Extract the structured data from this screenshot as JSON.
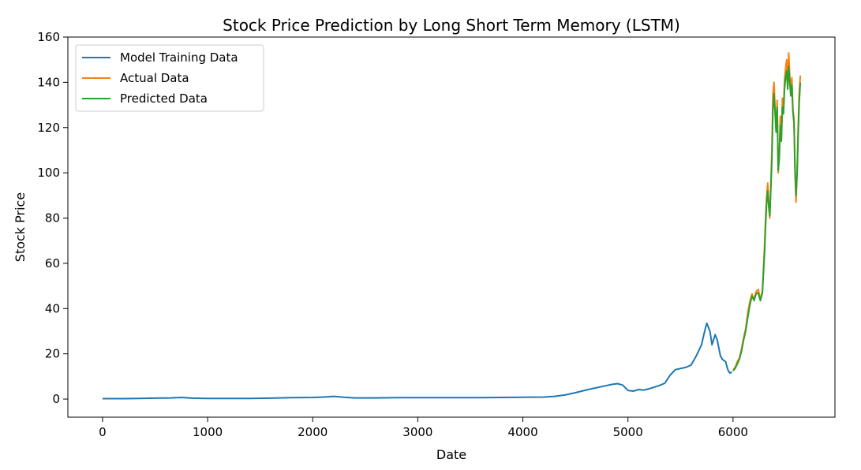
{
  "chart_data": {
    "type": "line",
    "title": "Stock Price Prediction by Long Short Term Memory (LSTM)",
    "xlabel": "Date",
    "ylabel": "Stock Price",
    "xlim": [
      -330,
      6970
    ],
    "ylim": [
      -8,
      160
    ],
    "xticks": [
      0,
      1000,
      2000,
      3000,
      4000,
      5000,
      6000
    ],
    "yticks": [
      0,
      20,
      40,
      60,
      80,
      100,
      120,
      140,
      160
    ],
    "grid": false,
    "legend_position": "top-left",
    "series": [
      {
        "name": "Model Training Data",
        "color": "#1f77b4",
        "points": [
          [
            0,
            0.2
          ],
          [
            200,
            0.2
          ],
          [
            350,
            0.3
          ],
          [
            500,
            0.4
          ],
          [
            650,
            0.5
          ],
          [
            750,
            0.7
          ],
          [
            850,
            0.4
          ],
          [
            1000,
            0.3
          ],
          [
            1200,
            0.3
          ],
          [
            1400,
            0.3
          ],
          [
            1600,
            0.4
          ],
          [
            1800,
            0.6
          ],
          [
            2000,
            0.7
          ],
          [
            2100,
            0.9
          ],
          [
            2200,
            1.2
          ],
          [
            2300,
            0.8
          ],
          [
            2400,
            0.5
          ],
          [
            2600,
            0.5
          ],
          [
            2800,
            0.6
          ],
          [
            3000,
            0.6
          ],
          [
            3200,
            0.6
          ],
          [
            3400,
            0.6
          ],
          [
            3600,
            0.6
          ],
          [
            3800,
            0.7
          ],
          [
            4000,
            0.8
          ],
          [
            4200,
            0.9
          ],
          [
            4300,
            1.2
          ],
          [
            4400,
            1.8
          ],
          [
            4500,
            2.8
          ],
          [
            4600,
            4.0
          ],
          [
            4700,
            5.0
          ],
          [
            4800,
            6.0
          ],
          [
            4850,
            6.5
          ],
          [
            4900,
            6.8
          ],
          [
            4950,
            6.2
          ],
          [
            5000,
            3.8
          ],
          [
            5050,
            3.5
          ],
          [
            5100,
            4.2
          ],
          [
            5150,
            4.0
          ],
          [
            5200,
            4.5
          ],
          [
            5300,
            6.0
          ],
          [
            5350,
            7.0
          ],
          [
            5400,
            10.5
          ],
          [
            5450,
            13.0
          ],
          [
            5500,
            13.5
          ],
          [
            5550,
            14.0
          ],
          [
            5600,
            15.0
          ],
          [
            5650,
            19.0
          ],
          [
            5700,
            24.0
          ],
          [
            5730,
            30.0
          ],
          [
            5750,
            33.5
          ],
          [
            5780,
            30.0
          ],
          [
            5800,
            24.0
          ],
          [
            5830,
            28.5
          ],
          [
            5850,
            26.0
          ],
          [
            5880,
            19.0
          ],
          [
            5900,
            17.5
          ],
          [
            5930,
            16.5
          ],
          [
            5950,
            13.0
          ],
          [
            5970,
            11.5
          ],
          [
            5990,
            12.0
          ]
        ]
      },
      {
        "name": "Actual Data",
        "color": "#ff7f0e",
        "points": [
          [
            6000,
            13.0
          ],
          [
            6020,
            14.0
          ],
          [
            6040,
            16.5
          ],
          [
            6060,
            18.0
          ],
          [
            6080,
            22.0
          ],
          [
            6100,
            27.0
          ],
          [
            6120,
            31.0
          ],
          [
            6140,
            38.0
          ],
          [
            6160,
            43.0
          ],
          [
            6180,
            46.5
          ],
          [
            6200,
            44.0
          ],
          [
            6220,
            47.5
          ],
          [
            6240,
            48.5
          ],
          [
            6260,
            44.0
          ],
          [
            6280,
            48.0
          ],
          [
            6300,
            68.0
          ],
          [
            6310,
            80.0
          ],
          [
            6320,
            90.0
          ],
          [
            6330,
            95.5
          ],
          [
            6340,
            86.0
          ],
          [
            6350,
            80.0
          ],
          [
            6360,
            96.0
          ],
          [
            6370,
            110.0
          ],
          [
            6380,
            135.0
          ],
          [
            6390,
            140.0
          ],
          [
            6400,
            128.0
          ],
          [
            6410,
            120.0
          ],
          [
            6420,
            132.0
          ],
          [
            6430,
            100.0
          ],
          [
            6440,
            108.0
          ],
          [
            6450,
            125.0
          ],
          [
            6460,
            115.0
          ],
          [
            6470,
            133.0
          ],
          [
            6480,
            128.0
          ],
          [
            6490,
            141.0
          ],
          [
            6500,
            146.0
          ],
          [
            6510,
            150.0
          ],
          [
            6520,
            140.0
          ],
          [
            6530,
            153.0
          ],
          [
            6540,
            143.0
          ],
          [
            6550,
            136.0
          ],
          [
            6560,
            142.0
          ],
          [
            6570,
            128.0
          ],
          [
            6580,
            124.0
          ],
          [
            6590,
            100.0
          ],
          [
            6600,
            87.0
          ],
          [
            6610,
            102.0
          ],
          [
            6620,
            120.0
          ],
          [
            6630,
            135.0
          ],
          [
            6640,
            143.0
          ]
        ]
      },
      {
        "name": "Predicted Data",
        "color": "#2ca02c",
        "points": [
          [
            6000,
            12.5
          ],
          [
            6020,
            13.5
          ],
          [
            6040,
            15.5
          ],
          [
            6060,
            17.5
          ],
          [
            6080,
            21.0
          ],
          [
            6100,
            26.0
          ],
          [
            6120,
            30.0
          ],
          [
            6140,
            36.0
          ],
          [
            6160,
            41.5
          ],
          [
            6180,
            45.5
          ],
          [
            6200,
            43.5
          ],
          [
            6220,
            46.5
          ],
          [
            6240,
            47.0
          ],
          [
            6260,
            43.5
          ],
          [
            6280,
            47.0
          ],
          [
            6300,
            65.0
          ],
          [
            6310,
            77.0
          ],
          [
            6320,
            87.0
          ],
          [
            6330,
            92.0
          ],
          [
            6340,
            85.0
          ],
          [
            6350,
            81.0
          ],
          [
            6360,
            93.0
          ],
          [
            6370,
            106.0
          ],
          [
            6380,
            128.0
          ],
          [
            6390,
            135.0
          ],
          [
            6400,
            127.0
          ],
          [
            6410,
            118.0
          ],
          [
            6420,
            129.0
          ],
          [
            6430,
            101.0
          ],
          [
            6440,
            106.0
          ],
          [
            6450,
            121.0
          ],
          [
            6460,
            114.0
          ],
          [
            6470,
            129.0
          ],
          [
            6480,
            126.0
          ],
          [
            6490,
            137.0
          ],
          [
            6500,
            142.0
          ],
          [
            6510,
            145.0
          ],
          [
            6520,
            137.0
          ],
          [
            6530,
            147.0
          ],
          [
            6540,
            140.0
          ],
          [
            6550,
            134.0
          ],
          [
            6560,
            139.0
          ],
          [
            6570,
            127.0
          ],
          [
            6580,
            122.0
          ],
          [
            6590,
            101.0
          ],
          [
            6600,
            90.0
          ],
          [
            6610,
            100.0
          ],
          [
            6620,
            117.0
          ],
          [
            6630,
            131.0
          ],
          [
            6640,
            140.0
          ]
        ]
      }
    ]
  }
}
